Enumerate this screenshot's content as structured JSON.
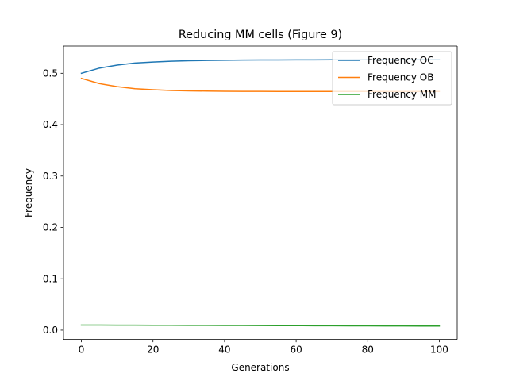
{
  "chart_data": {
    "type": "line",
    "title": "Reducing MM cells (Figure 9)",
    "xlabel": "Generations",
    "ylabel": "Frequency",
    "xlim": [
      -5,
      105
    ],
    "ylim": [
      -0.018,
      0.553
    ],
    "xticks": [
      "0",
      "20",
      "40",
      "60",
      "80",
      "100"
    ],
    "yticks": [
      "0.0",
      "0.1",
      "0.2",
      "0.3",
      "0.4",
      "0.5"
    ],
    "grid": false,
    "legend_position": "top-right",
    "x": [
      0,
      5,
      10,
      15,
      20,
      25,
      30,
      35,
      40,
      45,
      50,
      55,
      60,
      65,
      70,
      75,
      80,
      85,
      90,
      95,
      100
    ],
    "series": [
      {
        "name": "Frequency OC",
        "color": "#1f77b4",
        "values": [
          0.5,
          0.51,
          0.516,
          0.52,
          0.522,
          0.5235,
          0.5245,
          0.525,
          0.5254,
          0.5257,
          0.5259,
          0.526,
          0.5261,
          0.5262,
          0.5263,
          0.5264,
          0.5265,
          0.5265,
          0.5266,
          0.5266,
          0.5267
        ]
      },
      {
        "name": "Frequency OB",
        "color": "#ff7f0e",
        "values": [
          0.49,
          0.48,
          0.474,
          0.47,
          0.468,
          0.4665,
          0.4658,
          0.4653,
          0.465,
          0.4648,
          0.4647,
          0.4646,
          0.4646,
          0.4645,
          0.4645,
          0.4645,
          0.4645,
          0.4645,
          0.4645,
          0.4645,
          0.4645
        ]
      },
      {
        "name": "Frequency MM",
        "color": "#2ca02c",
        "values": [
          0.01,
          0.0099,
          0.0098,
          0.0097,
          0.0096,
          0.0095,
          0.0094,
          0.0093,
          0.0092,
          0.0091,
          0.009,
          0.0089,
          0.0088,
          0.0087,
          0.0086,
          0.0085,
          0.0084,
          0.0083,
          0.0082,
          0.0081,
          0.008
        ]
      }
    ]
  }
}
